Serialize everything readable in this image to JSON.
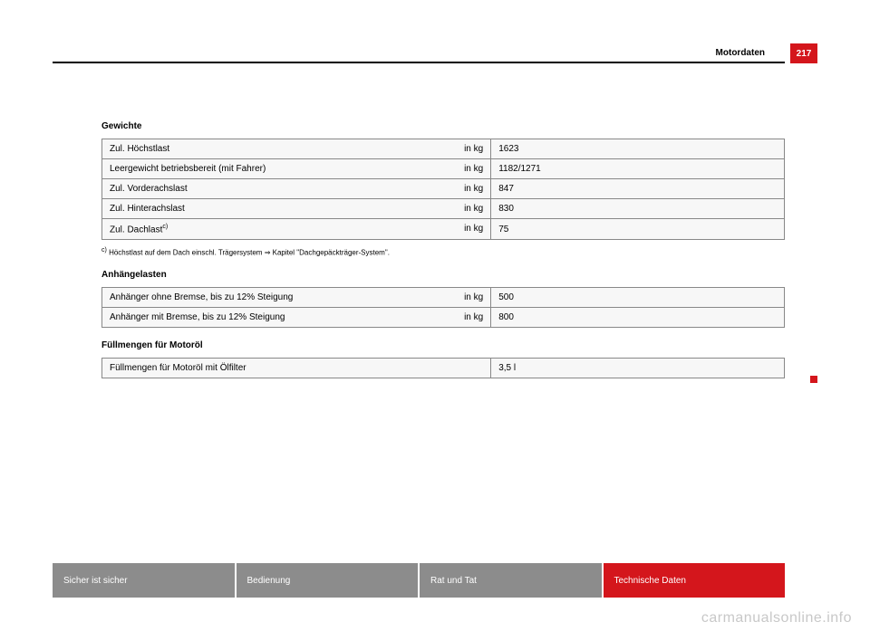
{
  "colors": {
    "accent": "#d4161c",
    "gray_tab": "#8c8c8c",
    "cell_bg": "#f7f7f7"
  },
  "header": {
    "title": "Motordaten",
    "page_number": "217"
  },
  "sections": {
    "gewichte": {
      "heading": "Gewichte",
      "rows": [
        {
          "label": "Zul. Höchstlast",
          "unit": "in kg",
          "value": "1623"
        },
        {
          "label": "Leergewicht betriebsbereit (mit Fahrer)",
          "unit": "in kg",
          "value": "1182/1271"
        },
        {
          "label": "Zul. Vorderachslast",
          "unit": "in kg",
          "value": "847"
        },
        {
          "label": "Zul. Hinterachslast",
          "unit": "in kg",
          "value": "830"
        },
        {
          "label": "Zul. Dachlast",
          "sup": "c)",
          "unit": "in kg",
          "value": "75"
        }
      ],
      "footnote_sup": "c)",
      "footnote": " Höchstlast auf dem Dach einschl. Trägersystem ⇒ Kapitel \"Dachgepäckträger-System\"."
    },
    "anhaengelasten": {
      "heading": "Anhängelasten",
      "rows": [
        {
          "label": "Anhänger ohne Bremse, bis zu 12% Steigung",
          "unit": "in kg",
          "value": "500"
        },
        {
          "label": "Anhänger mit Bremse, bis zu 12% Steigung",
          "unit": "in kg",
          "value": "800"
        }
      ]
    },
    "fuellmengen": {
      "heading": "Füllmengen für Motoröl",
      "rows": [
        {
          "label": "Füllmengen für Motoröl mit Ölfilter",
          "value": "3,5 l"
        }
      ]
    }
  },
  "tabs": [
    {
      "label": "Sicher ist sicher",
      "active": false
    },
    {
      "label": "Bedienung",
      "active": false
    },
    {
      "label": "Rat und Tat",
      "active": false
    },
    {
      "label": "Technische Daten",
      "active": true
    }
  ],
  "watermark": "carmanualsonline.info"
}
